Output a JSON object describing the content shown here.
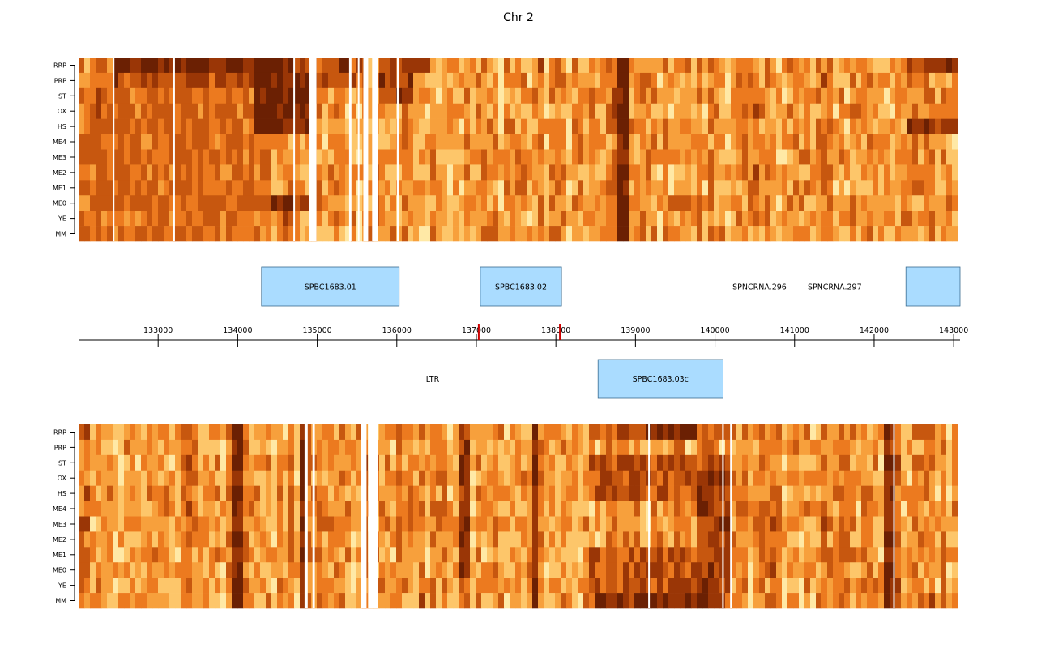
{
  "chart_data": {
    "type": "heatmap",
    "title": "Chr 2",
    "xlabel": "",
    "ylabel": "",
    "xlim": [
      132000,
      143080
    ],
    "row_labels": [
      "RRP",
      "PRP",
      "ST",
      "OX",
      "HS",
      "ME4",
      "ME3",
      "ME2",
      "ME1",
      "ME0",
      "YE",
      "MM"
    ],
    "axis": {
      "ticks": [
        133000,
        134000,
        135000,
        136000,
        137000,
        138000,
        139000,
        140000,
        141000,
        142000,
        143000
      ],
      "tick_labels": [
        "133000",
        "134000",
        "135000",
        "136000",
        "137000",
        "138000",
        "139000",
        "140000",
        "141000",
        "142000",
        "143000"
      ],
      "marker_positions": [
        137030,
        138050
      ],
      "marker_color": "#cc0000"
    },
    "genes_forward": [
      {
        "name": "SPBC1683.01",
        "start": 134300,
        "end": 136030,
        "boxed": true
      },
      {
        "name": "SPBC1683.02",
        "start": 137050,
        "end": 138070,
        "boxed": true
      },
      {
        "name": "SPNCRNA.296",
        "start": 140500,
        "end": 140620,
        "boxed": false
      },
      {
        "name": "SPNCRNA.297",
        "start": 141450,
        "end": 141560,
        "boxed": false
      },
      {
        "name": "",
        "start": 142400,
        "end": 143080,
        "boxed": true
      }
    ],
    "genes_reverse": [
      {
        "name": "LTR",
        "start": 136380,
        "end": 136520,
        "boxed": false
      },
      {
        "name": "SPBC1683.03c",
        "start": 138530,
        "end": 140100,
        "boxed": true
      }
    ],
    "heatmaps": [
      {
        "strand": "forward",
        "gaps": [
          [
            132430,
            132450
          ],
          [
            133190,
            133210
          ],
          [
            134700,
            134720
          ],
          [
            134900,
            134990
          ],
          [
            135400,
            135430
          ],
          [
            135510,
            135530
          ],
          [
            135580,
            135640
          ],
          [
            135690,
            135760
          ],
          [
            136000,
            136030
          ]
        ],
        "dark_regions": [
          {
            "range": [
              132430,
              134700
            ],
            "rows": [
              0
            ],
            "level": 0.92
          },
          {
            "range": [
              132430,
              135580
            ],
            "rows": [
              0,
              1
            ],
            "level": 0.75
          },
          {
            "range": [
              134200,
              134900
            ],
            "rows": [
              1,
              2,
              3,
              4
            ],
            "level": 0.9
          },
          {
            "range": [
              134400,
              134900
            ],
            "rows": [
              9
            ],
            "level": 0.85
          },
          {
            "range": [
              132000,
              134400
            ],
            "rows": [
              2,
              3,
              4,
              5,
              6,
              7,
              8,
              9,
              10,
              11
            ],
            "level": 0.6
          },
          {
            "range": [
              135760,
              136200
            ],
            "rows": [
              0,
              1,
              2
            ],
            "level": 0.8
          },
          {
            "range": [
              136200,
              136400
            ],
            "rows": [
              0
            ],
            "level": 0.75
          },
          {
            "range": [
              138800,
              138900
            ],
            "rows": [
              0,
              1,
              2,
              3,
              4,
              5,
              6,
              7,
              8,
              9,
              10,
              11
            ],
            "level": 0.97
          },
          {
            "range": [
              139400,
              139800
            ],
            "rows": [
              9
            ],
            "level": 0.6
          },
          {
            "range": [
              142400,
              143080
            ],
            "rows": [
              0
            ],
            "level": 0.8
          },
          {
            "range": [
              142400,
              143080
            ],
            "rows": [
              4
            ],
            "level": 0.85
          }
        ]
      },
      {
        "strand": "reverse",
        "gaps": [
          [
            134840,
            134880
          ],
          [
            134940,
            134970
          ],
          [
            135550,
            135580
          ],
          [
            135580,
            135620
          ],
          [
            135640,
            135760
          ],
          [
            139160,
            139180
          ],
          [
            140090,
            140110
          ],
          [
            140190,
            140210
          ],
          [
            142240,
            142260
          ]
        ],
        "dark_regions": [
          {
            "range": [
              133960,
              134040
            ],
            "rows": [
              0,
              1,
              2,
              3,
              4,
              5,
              6,
              7,
              8,
              9,
              10,
              11
            ],
            "level": 0.92
          },
          {
            "range": [
              134770,
              134880
            ],
            "rows": [
              0,
              1,
              2,
              3,
              4,
              5,
              6,
              7,
              8,
              9,
              10,
              11
            ],
            "level": 0.88
          },
          {
            "range": [
              138400,
              140200
            ],
            "rows": [
              0,
              2,
              3,
              4,
              8,
              9,
              10,
              11
            ],
            "level": 0.7
          },
          {
            "range": [
              139100,
              139800
            ],
            "rows": [
              0
            ],
            "level": 0.92
          },
          {
            "range": [
              138500,
              140100
            ],
            "rows": [
              11
            ],
            "level": 0.88
          },
          {
            "range": [
              139800,
              140200
            ],
            "rows": [
              3,
              4,
              5,
              6,
              7,
              8,
              9,
              10
            ],
            "level": 0.8
          },
          {
            "range": [
              137700,
              137800
            ],
            "rows": [
              0,
              1,
              2,
              3,
              4,
              5,
              6,
              7,
              8,
              9,
              10,
              11
            ],
            "level": 0.9
          },
          {
            "range": [
              136800,
              136900
            ],
            "rows": [
              0,
              1,
              2,
              3,
              4,
              5,
              6,
              7,
              8,
              9
            ],
            "level": 0.8
          },
          {
            "range": [
              142150,
              142250
            ],
            "rows": [
              0,
              1,
              2,
              3,
              4,
              5,
              6,
              7,
              8,
              9,
              10,
              11
            ],
            "level": 0.88
          }
        ]
      }
    ],
    "colormap": [
      "#fffadb",
      "#ffe9a6",
      "#fdc66a",
      "#f7a03c",
      "#ec7a1f",
      "#c7570f",
      "#9a3606",
      "#6b2003"
    ],
    "gene_box_fill": "#aadcff",
    "gene_box_stroke": "#3a6b8f"
  }
}
